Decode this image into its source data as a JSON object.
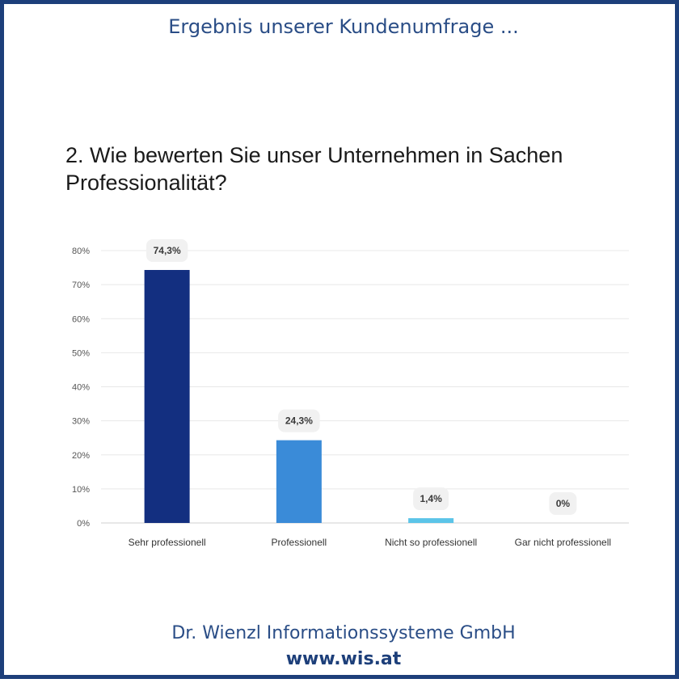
{
  "header": {
    "title": "Ergebnis unserer Kundenumfrage ..."
  },
  "footer": {
    "company": "Dr. Wienzl Informationssysteme GmbH",
    "website": "www.wis.at"
  },
  "colors": {
    "frame": "#1d3f7a",
    "bars": [
      "#132f80",
      "#3a8bd8",
      "#5bc4e8",
      "#5bc4e8"
    ]
  },
  "chart_data": {
    "type": "bar",
    "title": "2. Wie bewerten Sie unser Unternehmen in Sachen Professionalität?",
    "categories": [
      "Sehr professionell",
      "Professionell",
      "Nicht so professionell",
      "Gar nicht professionell"
    ],
    "values": [
      74.3,
      24.3,
      1.4,
      0
    ],
    "value_labels": [
      "74,3%",
      "24,3%",
      "1,4%",
      "0%"
    ],
    "yticks": [
      "0%",
      "10%",
      "20%",
      "30%",
      "40%",
      "50%",
      "60%",
      "70%",
      "80%"
    ],
    "ylim": [
      0,
      80
    ],
    "grid": true
  }
}
